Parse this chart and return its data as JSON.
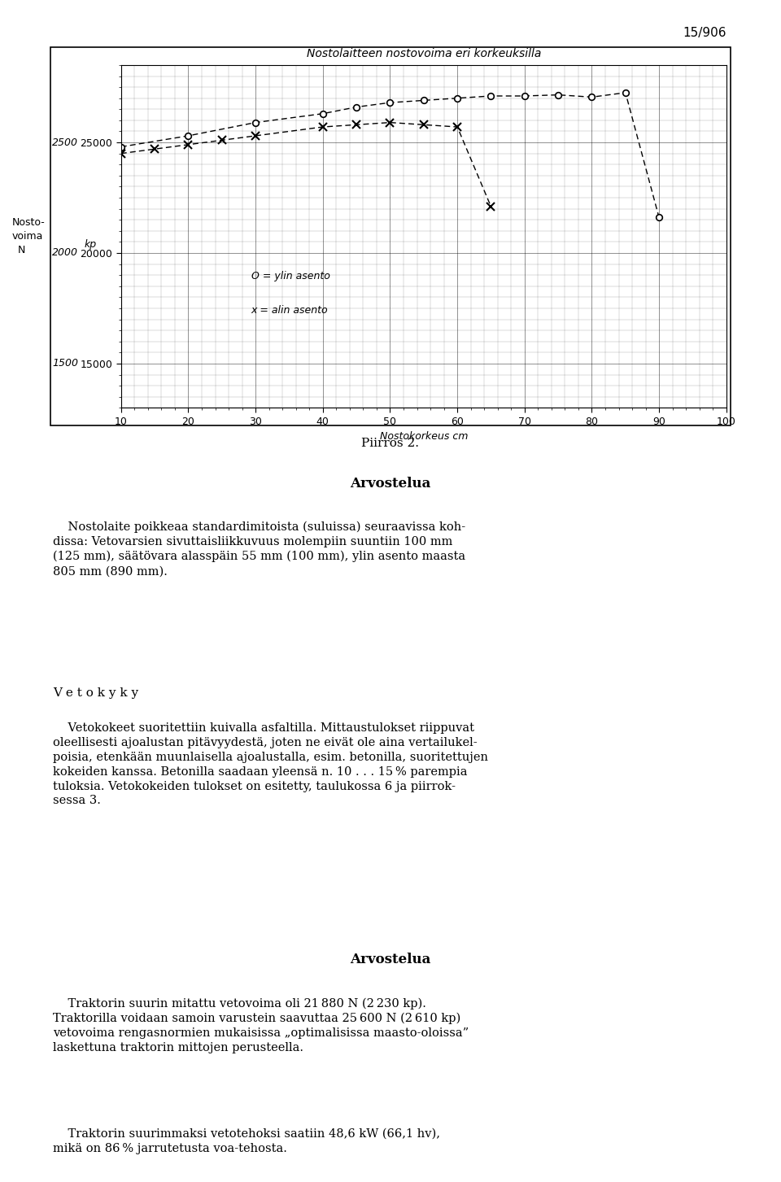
{
  "title_chart": "Nostolaitteen nostovoima eri korkeuksilla",
  "xlabel": "Nostokorkeus cm",
  "page_number": "15/906",
  "caption": "Piirros 2.",
  "xlim": [
    10,
    100
  ],
  "ylim": [
    13000,
    28500
  ],
  "yticks_N": [
    15000,
    20000,
    25000
  ],
  "ytick_labels_N": [
    "15000",
    "20000",
    "25000"
  ],
  "ytick_labels_kp": [
    "1500",
    "2000",
    "2500"
  ],
  "xticks": [
    10,
    20,
    30,
    40,
    50,
    60,
    70,
    80,
    90,
    100
  ],
  "legend_o": "O = ylin asento",
  "legend_x": "x = alin asento",
  "o_x": [
    10,
    20,
    30,
    40,
    45,
    50,
    55,
    60,
    65,
    70,
    75,
    80,
    85,
    90
  ],
  "o_y": [
    24800,
    25300,
    25900,
    26300,
    26600,
    26800,
    26900,
    27000,
    27100,
    27100,
    27150,
    27050,
    27250,
    21600
  ],
  "x_x": [
    10,
    15,
    20,
    25,
    30,
    40,
    45,
    50,
    55,
    60,
    65
  ],
  "x_y": [
    24500,
    24700,
    24900,
    25100,
    25300,
    25700,
    25800,
    25900,
    25800,
    25700,
    22100
  ],
  "sec1_title": "Arvostelua",
  "sec1_indent": "    Nostolaite poikkeaa standardimitoista (suluissa) seuraavissa koh-\ndissa: Vetovarsien sivuttaisliikkuvuus molempiin suuntiin 100 mm\n(125 mm), säätövara alasspäin 55 mm (100 mm), ylin asento maasta\n805 mm (890 mm).",
  "sec2_title": "V e t o k y k y",
  "sec2_text": "    Vetokokeet suoritettiin kuivalla asfaltilla. Mittaustulokset riippuvat\noleellisesti ajoalustan pitävyydestä, joten ne eivät ole aina vertailukel-\npoisia, etenkään muunlaisella ajoalustalla, esim. betonilla, suoritettujen\nkokeiden kanssa. Betonilla saadaan yleensä n. 10 . . . 15 % parempia\ntuloksia. Vetokokeiden tulokset on esitetty, taulukossa 6 ja piirrok-\nsessa 3.",
  "sec3_title": "Arvostelua",
  "sec3_text1": "    Traktorin suurin mitattu vetovoima oli 21 880 N (2 230 kp).\nTraktorilla voidaan samoin varustein saavuttaa 25 600 N (2 610 kp)\nvetovoima rengasnormien mukaisissa „optimalisissa maasto-oloissa”\nlaskettuna traktorin mittojen perusteella.",
  "sec3_text2": "    Traktorin suurimmaksi vetotehoksi saatiin 48,6 kW (66,1 hv),\nmikä on 86 % jarrutetusta voa-tehosta."
}
